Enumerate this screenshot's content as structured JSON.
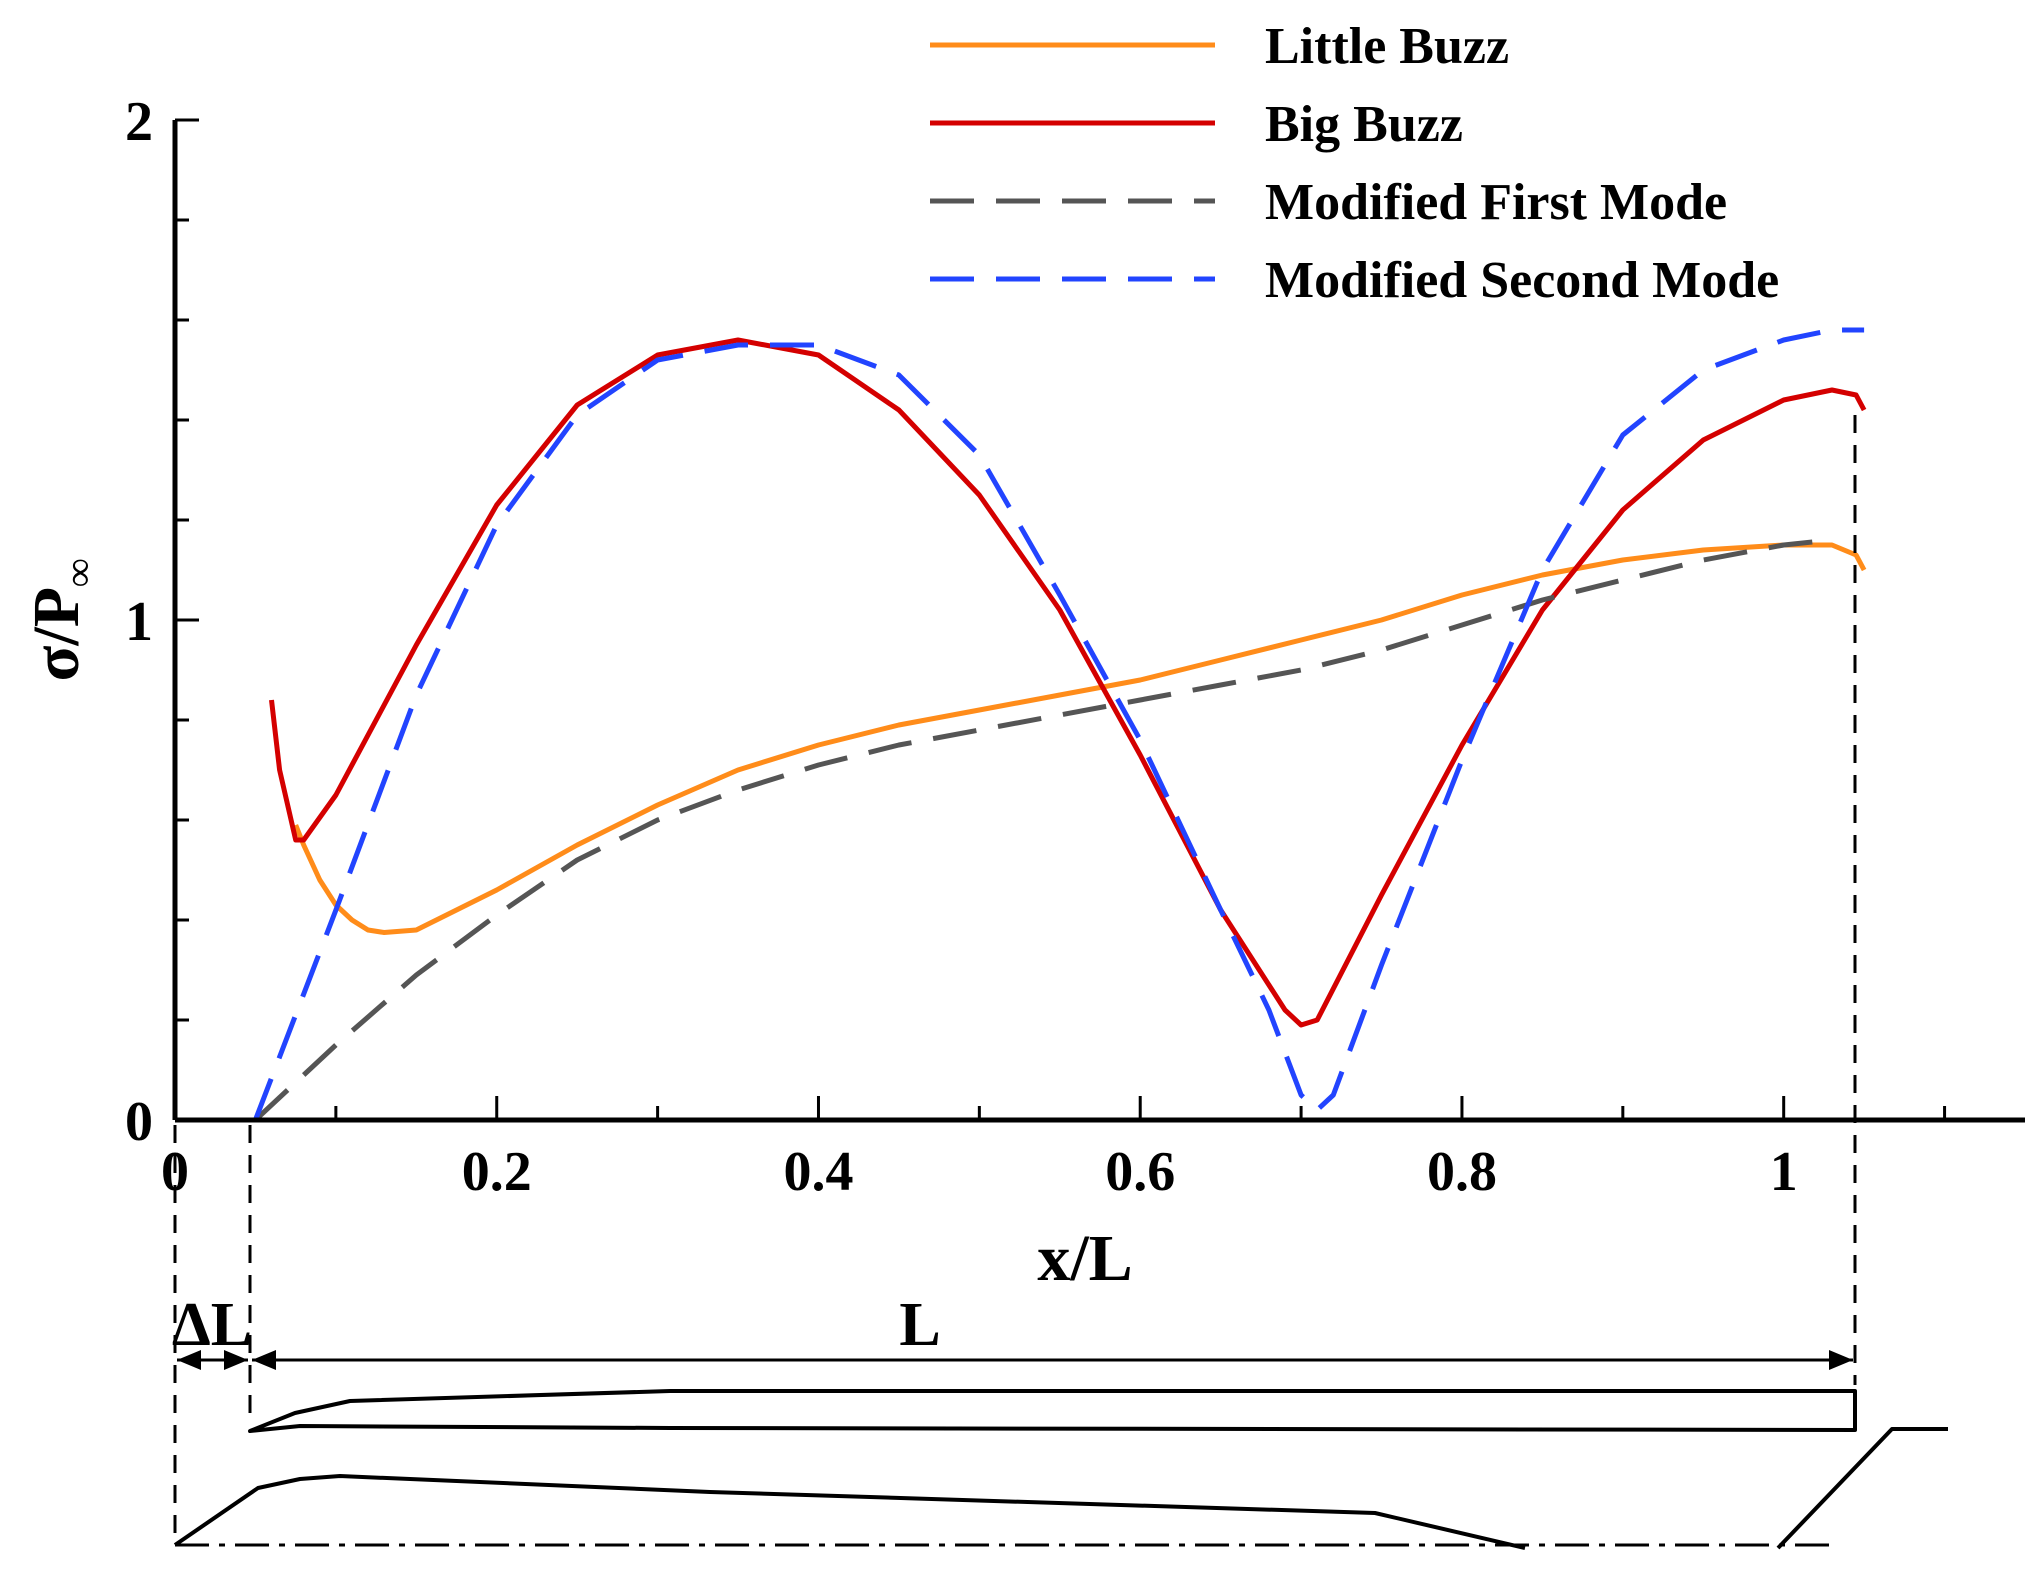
{
  "chart_data": {
    "type": "line",
    "title": "",
    "xlabel": "x/L",
    "ylabel": "σ/P∞",
    "ylabel_main": "σ/P",
    "ylabel_sub": "∞",
    "xlim": [
      0,
      1.15
    ],
    "ylim": [
      0,
      2.0
    ],
    "x_ticks": [
      {
        "value": 0,
        "label": "0"
      },
      {
        "value": 0.2,
        "label": "0.2"
      },
      {
        "value": 0.4,
        "label": "0.4"
      },
      {
        "value": 0.6,
        "label": "0.6"
      },
      {
        "value": 0.8,
        "label": "0.8"
      },
      {
        "value": 1.0,
        "label": "1"
      }
    ],
    "y_ticks": [
      {
        "value": 0,
        "label": "0"
      },
      {
        "value": 1,
        "label": "1"
      },
      {
        "value": 2,
        "label": "2"
      }
    ],
    "x_minor_step": 0.1,
    "y_minor_step": 0.2,
    "legend_position": "top-right",
    "series": [
      {
        "name": "Little Buzz",
        "color": "#ff8c1a",
        "dash": "solid",
        "x": [
          0.075,
          0.08,
          0.09,
          0.1,
          0.11,
          0.12,
          0.13,
          0.15,
          0.2,
          0.25,
          0.3,
          0.35,
          0.4,
          0.45,
          0.5,
          0.55,
          0.6,
          0.65,
          0.7,
          0.75,
          0.8,
          0.85,
          0.9,
          0.95,
          1.0,
          1.03,
          1.045,
          1.05
        ],
        "y": [
          0.59,
          0.55,
          0.48,
          0.43,
          0.4,
          0.38,
          0.375,
          0.38,
          0.46,
          0.55,
          0.63,
          0.7,
          0.75,
          0.79,
          0.82,
          0.85,
          0.88,
          0.92,
          0.96,
          1.0,
          1.05,
          1.09,
          1.12,
          1.14,
          1.15,
          1.15,
          1.13,
          1.1
        ]
      },
      {
        "name": "Big Buzz",
        "color": "#d40000",
        "dash": "solid",
        "x": [
          0.06,
          0.065,
          0.075,
          0.08,
          0.1,
          0.15,
          0.2,
          0.25,
          0.3,
          0.35,
          0.4,
          0.45,
          0.5,
          0.55,
          0.6,
          0.65,
          0.69,
          0.7,
          0.71,
          0.75,
          0.8,
          0.85,
          0.9,
          0.95,
          1.0,
          1.03,
          1.045,
          1.05
        ],
        "y": [
          0.84,
          0.7,
          0.56,
          0.56,
          0.65,
          0.95,
          1.23,
          1.43,
          1.53,
          1.56,
          1.53,
          1.42,
          1.25,
          1.02,
          0.73,
          0.42,
          0.22,
          0.19,
          0.2,
          0.45,
          0.75,
          1.02,
          1.22,
          1.36,
          1.44,
          1.46,
          1.45,
          1.42
        ]
      },
      {
        "name": "Modified First Mode",
        "color": "#555555",
        "dash": "dashed",
        "x": [
          0.05,
          0.1,
          0.15,
          0.2,
          0.25,
          0.3,
          0.35,
          0.4,
          0.45,
          0.5,
          0.55,
          0.6,
          0.65,
          0.7,
          0.75,
          0.8,
          0.85,
          0.9,
          0.95,
          1.0,
          1.03
        ],
        "y": [
          0.0,
          0.15,
          0.29,
          0.41,
          0.52,
          0.6,
          0.66,
          0.71,
          0.75,
          0.78,
          0.81,
          0.84,
          0.87,
          0.9,
          0.94,
          0.99,
          1.04,
          1.08,
          1.12,
          1.15,
          1.16
        ]
      },
      {
        "name": "Modified Second Mode",
        "color": "#2244ff",
        "dash": "dashed",
        "x": [
          0.05,
          0.1,
          0.15,
          0.2,
          0.25,
          0.3,
          0.35,
          0.4,
          0.45,
          0.5,
          0.55,
          0.6,
          0.65,
          0.68,
          0.7,
          0.71,
          0.72,
          0.75,
          0.8,
          0.85,
          0.9,
          0.95,
          1.0,
          1.03,
          1.05
        ],
        "y": [
          0.0,
          0.42,
          0.85,
          1.19,
          1.41,
          1.52,
          1.55,
          1.55,
          1.49,
          1.33,
          1.05,
          0.76,
          0.42,
          0.22,
          0.05,
          0.02,
          0.05,
          0.31,
          0.72,
          1.1,
          1.37,
          1.5,
          1.56,
          1.58,
          1.58
        ]
      }
    ]
  },
  "schematic": {
    "delta_label": "ΔL",
    "length_label": "L"
  }
}
